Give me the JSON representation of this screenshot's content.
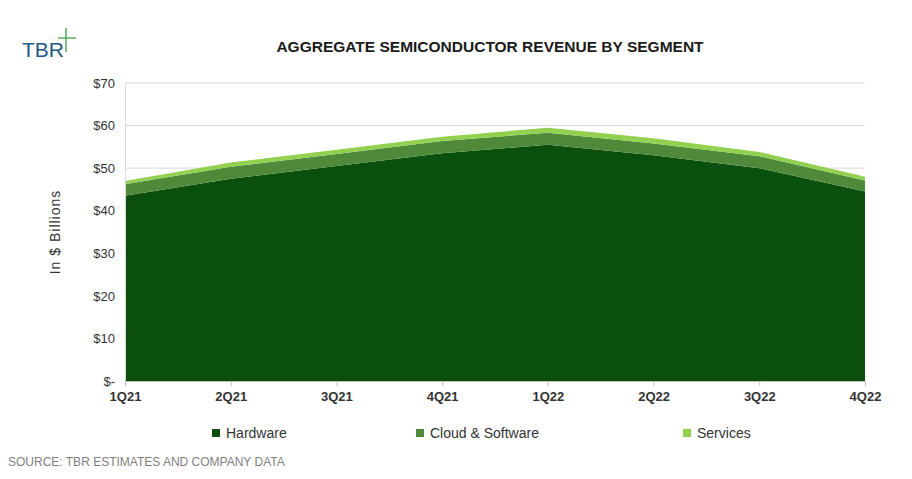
{
  "chart_data": {
    "type": "area",
    "title": "AGGREGATE SEMICONDUCTOR REVENUE BY SEGMENT",
    "logo": "TBR",
    "y_label": "In $ Billions",
    "source": "SOURCE: TBR ESTIMATES AND COMPANY DATA",
    "categories": [
      "1Q21",
      "2Q21",
      "3Q21",
      "4Q21",
      "1Q22",
      "2Q22",
      "3Q22",
      "4Q22"
    ],
    "series": [
      {
        "name": "Hardware",
        "color": "#0b4f0c",
        "values": [
          43.5,
          47.5,
          50.5,
          53.5,
          55.5,
          53.0,
          50.0,
          44.5
        ]
      },
      {
        "name": "Cloud & Software",
        "color": "#4e8a3a",
        "values": [
          2.7,
          2.8,
          2.8,
          2.9,
          2.8,
          2.8,
          2.8,
          2.6
        ]
      },
      {
        "name": "Services",
        "color": "#92d050",
        "values": [
          0.8,
          1.0,
          1.0,
          1.0,
          1.2,
          1.2,
          1.0,
          0.9
        ]
      }
    ],
    "ylim": [
      0,
      70
    ],
    "yticks": [
      {
        "value": 0,
        "label": "$-"
      },
      {
        "value": 10,
        "label": "$10"
      },
      {
        "value": 20,
        "label": "$20"
      },
      {
        "value": 30,
        "label": "$30"
      },
      {
        "value": 40,
        "label": "$40"
      },
      {
        "value": 50,
        "label": "$50"
      },
      {
        "value": 60,
        "label": "$60"
      },
      {
        "value": 70,
        "label": "$70"
      }
    ],
    "stacked": true,
    "grid": true,
    "legend": "bottom"
  }
}
